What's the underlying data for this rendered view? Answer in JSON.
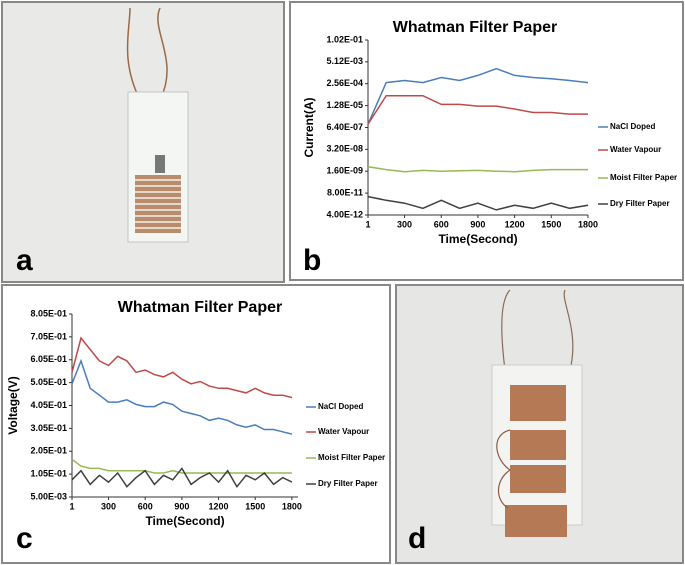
{
  "panel_labels": [
    "a",
    "b",
    "c",
    "d"
  ],
  "chart_data": [
    {
      "type": "line",
      "title": "Whatman Filter Paper",
      "x_label": "Time(Second)",
      "y_label": "Current(A)",
      "log_y": true,
      "legend": "right",
      "x": [
        1,
        150,
        300,
        450,
        600,
        750,
        900,
        1050,
        1200,
        1350,
        1500,
        1650,
        1800
      ],
      "xlim": [
        1,
        1800
      ],
      "xticks": [
        1,
        300,
        600,
        900,
        1200,
        1500,
        1800
      ],
      "ylim": [
        4e-12,
        0.102
      ],
      "yticks": [
        {
          "value": 4e-12,
          "label": "4.00E-12"
        },
        {
          "value": 8e-11,
          "label": "8.00E-11"
        },
        {
          "value": 1.6e-09,
          "label": "1.60E-09"
        },
        {
          "value": 3.2e-08,
          "label": "3.20E-08"
        },
        {
          "value": 6.4e-07,
          "label": "6.40E-07"
        },
        {
          "value": 1.28e-05,
          "label": "1.28E-05"
        },
        {
          "value": 0.000256,
          "label": "2.56E-04"
        },
        {
          "value": 0.00512,
          "label": "5.12E-03"
        },
        {
          "value": 0.102,
          "label": "1.02E-01"
        }
      ],
      "series": [
        {
          "name": "NaCl Doped",
          "color": "#4a7ebb",
          "values": [
            1e-06,
            0.0003,
            0.0004,
            0.0003,
            0.0006,
            0.0004,
            0.0008,
            0.002,
            0.0008,
            0.0006,
            0.0005,
            0.0004,
            0.0003
          ]
        },
        {
          "name": "Water Vapour",
          "color": "#be4b48",
          "values": [
            1e-06,
            5e-05,
            5e-05,
            5e-05,
            1.5e-05,
            1.5e-05,
            1.2e-05,
            1.2e-05,
            8e-06,
            5e-06,
            5e-06,
            4e-06,
            4e-06
          ]
        },
        {
          "name": "Moist Filter Paper",
          "color": "#98b954",
          "values": [
            3e-09,
            2e-09,
            1.5e-09,
            1.8e-09,
            1.6e-09,
            1.7e-09,
            1.8e-09,
            1.6e-09,
            1.5e-09,
            1.8e-09,
            2e-09,
            2e-09,
            2e-09
          ]
        },
        {
          "name": "Dry Filter Paper",
          "color": "#404040",
          "values": [
            5e-11,
            3e-11,
            2e-11,
            1e-11,
            3e-11,
            1e-11,
            2e-11,
            8e-12,
            1.5e-11,
            1e-11,
            2e-11,
            1e-11,
            1.5e-11
          ]
        }
      ]
    },
    {
      "type": "line",
      "title": "Whatman Filter Paper",
      "x_label": "Time(Second)",
      "y_label": "Voltage(V)",
      "log_y": false,
      "legend": "right",
      "x": [
        1,
        75,
        150,
        225,
        300,
        375,
        450,
        525,
        600,
        675,
        750,
        825,
        900,
        975,
        1050,
        1125,
        1200,
        1275,
        1350,
        1425,
        1500,
        1575,
        1650,
        1725,
        1800
      ],
      "xlim": [
        1,
        1850
      ],
      "xticks": [
        1,
        300,
        600,
        900,
        1200,
        1500,
        1800
      ],
      "ylim": [
        0.005,
        0.805
      ],
      "yticks": [
        {
          "value": 0.005,
          "label": "5.00E-03"
        },
        {
          "value": 0.105,
          "label": "1.05E-01"
        },
        {
          "value": 0.205,
          "label": "2.05E-01"
        },
        {
          "value": 0.305,
          "label": "3.05E-01"
        },
        {
          "value": 0.405,
          "label": "4.05E-01"
        },
        {
          "value": 0.505,
          "label": "5.05E-01"
        },
        {
          "value": 0.605,
          "label": "6.05E-01"
        },
        {
          "value": 0.705,
          "label": "7.05E-01"
        },
        {
          "value": 0.805,
          "label": "8.05E-01"
        }
      ],
      "series": [
        {
          "name": "NaCl Doped",
          "color": "#4a7ebb",
          "values": [
            0.5,
            0.6,
            0.48,
            0.45,
            0.42,
            0.42,
            0.43,
            0.41,
            0.4,
            0.4,
            0.42,
            0.41,
            0.38,
            0.37,
            0.36,
            0.34,
            0.35,
            0.34,
            0.32,
            0.31,
            0.32,
            0.3,
            0.3,
            0.29,
            0.28
          ]
        },
        {
          "name": "Water Vapour",
          "color": "#be4b48",
          "values": [
            0.55,
            0.7,
            0.65,
            0.6,
            0.58,
            0.62,
            0.6,
            0.55,
            0.56,
            0.54,
            0.53,
            0.55,
            0.52,
            0.5,
            0.51,
            0.49,
            0.48,
            0.48,
            0.47,
            0.46,
            0.48,
            0.46,
            0.45,
            0.45,
            0.44
          ]
        },
        {
          "name": "Moist Filter Paper",
          "color": "#98b954",
          "values": [
            0.17,
            0.14,
            0.13,
            0.13,
            0.12,
            0.12,
            0.12,
            0.12,
            0.12,
            0.11,
            0.11,
            0.12,
            0.11,
            0.11,
            0.11,
            0.11,
            0.11,
            0.11,
            0.11,
            0.11,
            0.11,
            0.11,
            0.11,
            0.11,
            0.11
          ]
        },
        {
          "name": "Dry Filter Paper",
          "color": "#404040",
          "values": [
            0.08,
            0.12,
            0.06,
            0.1,
            0.07,
            0.11,
            0.05,
            0.09,
            0.12,
            0.06,
            0.1,
            0.08,
            0.13,
            0.06,
            0.09,
            0.11,
            0.07,
            0.12,
            0.05,
            0.1,
            0.08,
            0.11,
            0.06,
            0.09,
            0.07
          ]
        }
      ]
    }
  ]
}
